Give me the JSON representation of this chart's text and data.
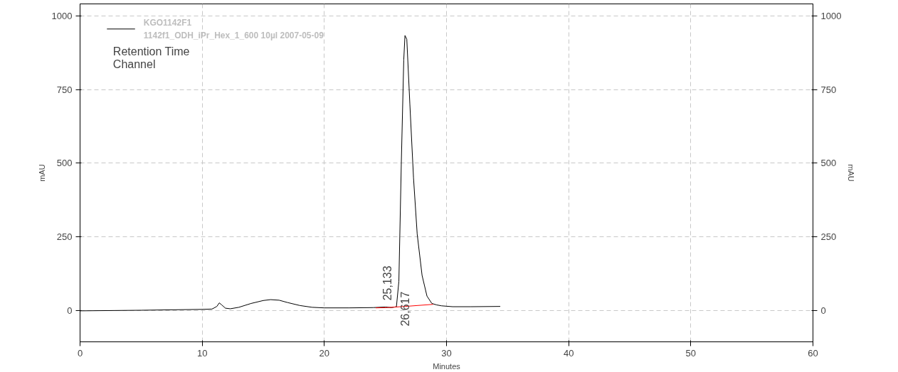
{
  "chart_data": {
    "type": "line",
    "xlabel": "Minutes",
    "ylabel": "mAU",
    "y2label": "mAU",
    "xlim": [
      0,
      60
    ],
    "xticks": [
      0,
      10,
      20,
      30,
      40,
      50,
      60
    ],
    "ylim": [
      -105,
      1040
    ],
    "yticks": [
      0,
      250,
      500,
      750,
      1000
    ],
    "y2lim": [
      -105,
      1040
    ],
    "y2ticks": [
      0,
      250,
      500,
      750,
      1000
    ],
    "grid": true,
    "legend": "top left",
    "line_style": "solid",
    "marker": "none",
    "series": [
      {
        "name": "KGO1142F1\n1142f1_ODH_iPr_Hex_1_600 10µl 2007-05-09",
        "color": "#000000",
        "x": [
          0,
          5,
          10,
          10.8,
          11.2,
          11.4,
          11.6,
          11.9,
          12.3,
          13,
          14,
          15,
          15.6,
          16.3,
          17,
          18,
          19,
          20,
          22,
          24,
          25,
          25.5,
          25.9,
          26.1,
          26.3,
          26.5,
          26.6,
          26.75,
          27.0,
          27.3,
          27.6,
          28.0,
          28.4,
          28.8,
          29.2,
          29.6,
          30.5,
          32,
          34.4
        ],
        "values": [
          0,
          2,
          5,
          6,
          15,
          27,
          20,
          9,
          7,
          12,
          25,
          35,
          38,
          36,
          28,
          18,
          12,
          10,
          10,
          11,
          13,
          11,
          14,
          100,
          500,
          850,
          933,
          920,
          700,
          450,
          260,
          120,
          50,
          25,
          20,
          17,
          14,
          14,
          15
        ]
      },
      {
        "color": "#ff0000",
        "x": [
          24.2,
          25.133,
          26.617,
          28.9
        ],
        "values": [
          10,
          11,
          15,
          22
        ]
      }
    ],
    "annotations": [
      "Retention Time",
      "Channel",
      {
        "text": "25,133",
        "x": 25.133,
        "y": 11
      },
      {
        "text": "26,617",
        "x": 26.617,
        "y": 15
      }
    ]
  }
}
